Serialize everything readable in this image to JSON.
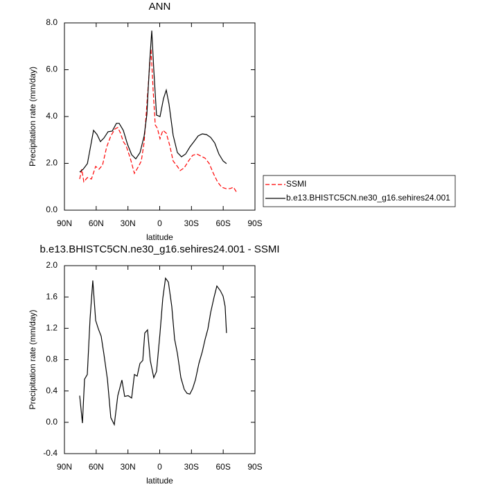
{
  "chart_data": [
    {
      "type": "line",
      "title": "ANN",
      "xlabel": "latitude",
      "ylabel": "Precipitation rate (mm/day)",
      "xlim": [
        90,
        -90
      ],
      "xticks": [
        {
          "value": 90,
          "label": "90N"
        },
        {
          "value": 60,
          "label": "60N"
        },
        {
          "value": 30,
          "label": "30N"
        },
        0,
        {
          "value": -30,
          "label": "30S"
        },
        {
          "value": -60,
          "label": "60S"
        },
        {
          "value": -90,
          "label": "90S"
        }
      ],
      "ylim": [
        0,
        8
      ],
      "yticks": [
        {
          "value": 0,
          "label": "0.0"
        },
        {
          "value": 2,
          "label": "2.0"
        },
        {
          "value": 4,
          "label": "4.0"
        },
        {
          "value": 6,
          "label": "6.0"
        },
        {
          "value": 8,
          "label": "8.0"
        }
      ],
      "legend_position": "right",
      "series": [
        {
          "name": "SSMI",
          "color": "#ff0000",
          "line_style": "dashed",
          "x": [
            75.6,
            73.6,
            71.7,
            68.4,
            64.5,
            60.5,
            57.3,
            54.0,
            50.1,
            46.2,
            42.2,
            39.6,
            37.0,
            34.4,
            31.8,
            27.8,
            23.9,
            20.0,
            17.4,
            14.7,
            12.1,
            10.2,
            8.2,
            6.2,
            4.2,
            2.2,
            -0.3,
            -3.0,
            -6.2,
            -9.5,
            -12.7,
            -16.7,
            -19.3,
            -23.2,
            -27.2,
            -31.1,
            -35.0,
            -39.0,
            -42.9,
            -46.8,
            -50.7,
            -54.6,
            -58.6,
            -62.5,
            -66.4,
            -69.7,
            -73.0
          ],
          "values": [
            1.33,
            1.75,
            1.21,
            1.39,
            1.33,
            1.87,
            1.75,
            1.93,
            2.7,
            3.17,
            3.47,
            3.53,
            3.29,
            2.93,
            2.76,
            2.22,
            1.57,
            1.87,
            2.1,
            2.9,
            4.53,
            5.72,
            6.9,
            5.13,
            3.64,
            3.5,
            3.05,
            3.41,
            3.29,
            2.76,
            2.1,
            1.87,
            1.69,
            1.81,
            2.1,
            2.34,
            2.4,
            2.31,
            2.22,
            1.99,
            1.57,
            1.21,
            0.98,
            0.92,
            0.92,
            0.98,
            0.74
          ]
        },
        {
          "name": "b.e13.BHISTC5CN.ne30_g16.sehires24.001",
          "color": "#000000",
          "line_style": "solid",
          "x": [
            75.6,
            72.3,
            68.3,
            62.5,
            59.2,
            56.0,
            52.7,
            48.8,
            44.8,
            40.9,
            38.3,
            34.4,
            30.4,
            26.5,
            22.6,
            18.6,
            14.7,
            12.1,
            10.8,
            9.5,
            7.5,
            5.6,
            3.0,
            -0.3,
            -3.6,
            -6.2,
            -8.8,
            -12.7,
            -16.7,
            -20.6,
            -24.5,
            -28.5,
            -32.4,
            -36.3,
            -40.2,
            -44.2,
            -48.1,
            -52.0,
            -55.9,
            -59.9,
            -63.1
          ],
          "values": [
            1.63,
            1.75,
            1.99,
            3.41,
            3.23,
            2.93,
            3.08,
            3.35,
            3.38,
            3.71,
            3.71,
            3.41,
            2.81,
            2.37,
            2.19,
            2.46,
            3.17,
            4.09,
            5.24,
            6.31,
            7.67,
            6.01,
            4.06,
            4.0,
            4.77,
            5.13,
            4.53,
            3.2,
            2.46,
            2.28,
            2.4,
            2.7,
            2.93,
            3.17,
            3.26,
            3.23,
            3.11,
            2.87,
            2.4,
            2.1,
            1.99
          ]
        }
      ]
    },
    {
      "type": "line",
      "title": "b.e13.BHISTC5CN.ne30_g16.sehires24.001 - SSMI",
      "xlabel": "latitude",
      "ylabel": "Precipitation rate (mm/day)",
      "xlim": [
        90,
        -90
      ],
      "xticks": [
        {
          "value": 90,
          "label": "90N"
        },
        {
          "value": 60,
          "label": "60N"
        },
        {
          "value": 30,
          "label": "30N"
        },
        0,
        {
          "value": -30,
          "label": "30S"
        },
        {
          "value": -60,
          "label": "60S"
        },
        {
          "value": -90,
          "label": "90S"
        }
      ],
      "ylim": [
        -0.4,
        2
      ],
      "yticks": [
        -0.4,
        {
          "value": 0,
          "label": "0.0"
        },
        0.4,
        0.8,
        1.2,
        1.6,
        {
          "value": 2,
          "label": "2.0"
        }
      ],
      "color": "#000000",
      "x": [
        75.6,
        73.0,
        71.0,
        68.4,
        65.8,
        63.2,
        60.5,
        57.9,
        55.3,
        52.7,
        49.4,
        46.2,
        42.9,
        39.6,
        35.7,
        33.1,
        29.8,
        26.5,
        23.9,
        21.3,
        18.7,
        16.0,
        14.1,
        11.5,
        8.9,
        5.6,
        3.0,
        -0.3,
        -2.9,
        -5.5,
        -8.2,
        -11.4,
        -14.1,
        -16.7,
        -20.0,
        -23.2,
        -25.8,
        -28.5,
        -31.1,
        -33.7,
        -37.0,
        -40.2,
        -42.9,
        -45.5,
        -48.1,
        -51.4,
        -54.0,
        -57.3,
        -59.9,
        -61.8,
        -63.1
      ],
      "values": [
        0.34,
        -0.01,
        0.55,
        0.61,
        1.32,
        1.81,
        1.3,
        1.19,
        1.1,
        0.87,
        0.55,
        0.06,
        -0.03,
        0.34,
        0.54,
        0.33,
        0.34,
        0.31,
        0.61,
        0.59,
        0.75,
        0.79,
        1.14,
        1.18,
        0.79,
        0.57,
        0.65,
        1.14,
        1.58,
        1.84,
        1.79,
        1.48,
        1.06,
        0.88,
        0.57,
        0.42,
        0.37,
        0.36,
        0.43,
        0.54,
        0.75,
        0.9,
        1.06,
        1.19,
        1.4,
        1.6,
        1.74,
        1.68,
        1.61,
        1.48,
        1.14
      ]
    }
  ]
}
